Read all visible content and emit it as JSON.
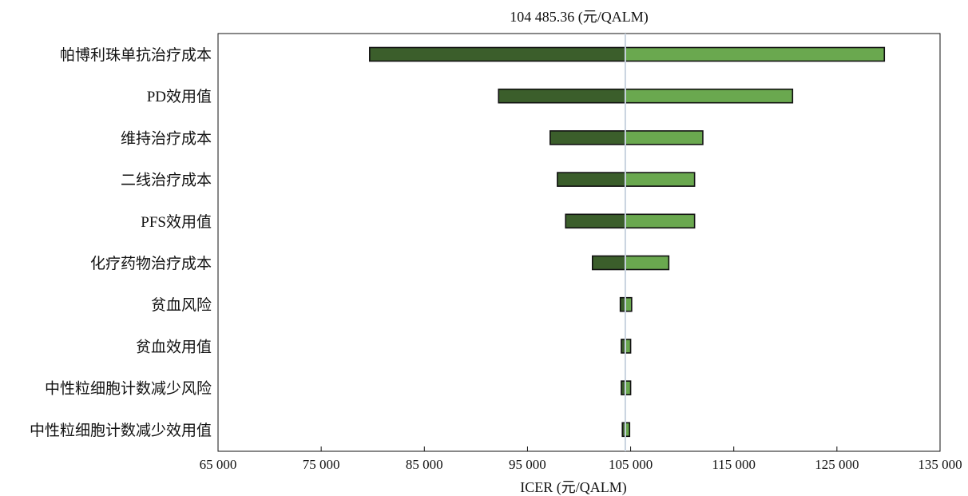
{
  "chart_data": {
    "type": "bar",
    "orientation": "horizontal",
    "title": "104 485.36 (元/QALM)",
    "xlabel": "ICER (元/QALM)",
    "ylabel": "",
    "base_value": 104485.36,
    "xlim": [
      65000,
      135000
    ],
    "xticks": [
      65000,
      75000,
      85000,
      95000,
      105000,
      115000,
      125000,
      135000
    ],
    "xtick_labels": [
      "65 000",
      "75 000",
      "85 000",
      "95 000",
      "105 000",
      "115 000",
      "125 000",
      "135 000"
    ],
    "grid": false,
    "legend": "none",
    "colors": {
      "low": "#3b5e2b",
      "high": "#6aa84f",
      "baseline": "#c8d3df",
      "outline": "#111111"
    },
    "categories": [
      "帕博利珠单抗治疗成本",
      "PD效用值",
      "维持治疗成本",
      "二线治疗成本",
      "PFS效用值",
      "化疗药物治疗成本",
      "贫血风险",
      "贫血效用值",
      "中性粒细胞计数减少风险",
      "中性粒细胞计数减少效用值"
    ],
    "series": [
      {
        "values": [
          79700,
          92200,
          97200,
          97900,
          98700,
          101300,
          104000,
          104100,
          104100,
          104200
        ]
      },
      {
        "values": [
          129600,
          120700,
          112000,
          111200,
          111200,
          108700,
          105100,
          105000,
          105000,
          104900
        ]
      }
    ]
  }
}
